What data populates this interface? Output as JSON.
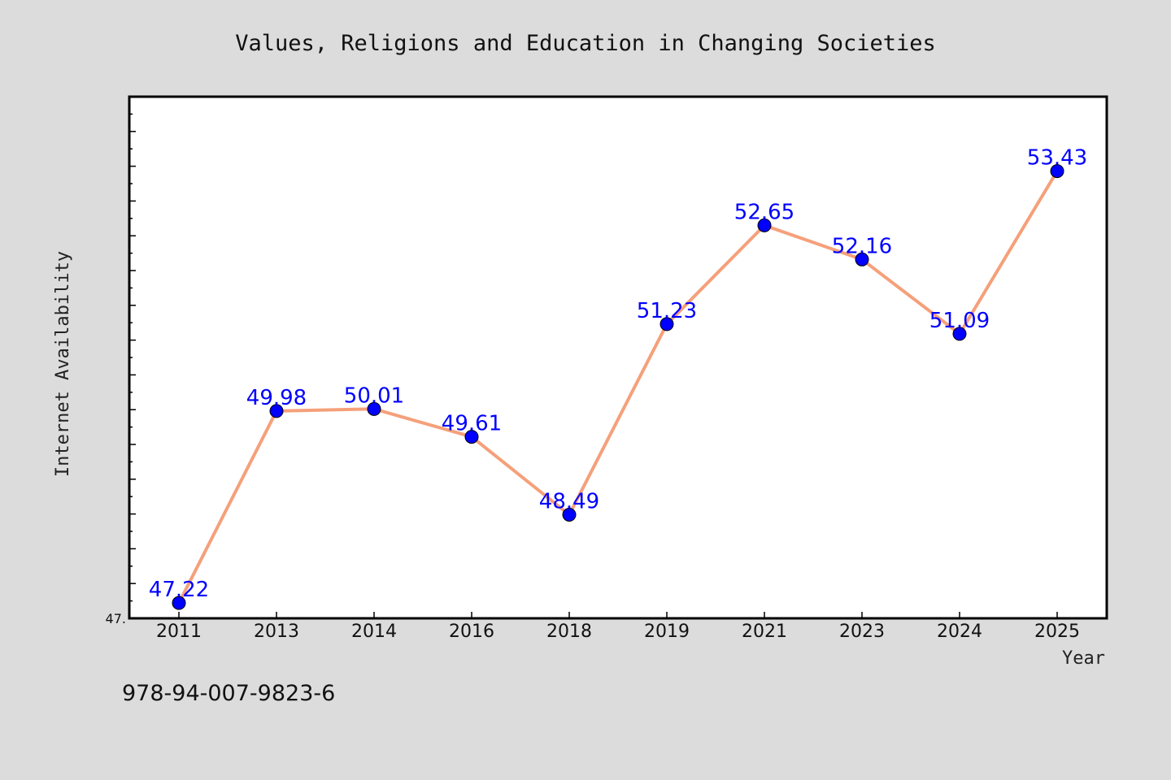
{
  "footer_text": "978-94-007-9823-6",
  "colors": {
    "background": "#dcdcdc",
    "plot_background": "#ffffff",
    "line": "#f5a07a",
    "marker": "#0000ff",
    "label": "#0000ff"
  },
  "chart_data": {
    "type": "line",
    "title": "Values, Religions and Education in Changing Societies",
    "xlabel": "Year",
    "ylabel": "Internet Availability",
    "categories": [
      "2011",
      "2013",
      "2014",
      "2016",
      "2018",
      "2019",
      "2021",
      "2023",
      "2024",
      "2025"
    ],
    "series": [
      {
        "values": [
          47.22,
          49.98,
          50.01,
          49.61,
          48.49,
          51.23,
          52.65,
          52.16,
          51.09,
          53.43
        ]
      }
    ],
    "data_labels": [
      "47.22",
      "49.98",
      "50.01",
      "49.61",
      "48.49",
      "51.23",
      "52.65",
      "52.16",
      "51.09",
      "53.43"
    ],
    "ylim": [
      47.0,
      54.5
    ],
    "ytick_labels": [
      "47."
    ],
    "grid": false,
    "legend": "none"
  }
}
